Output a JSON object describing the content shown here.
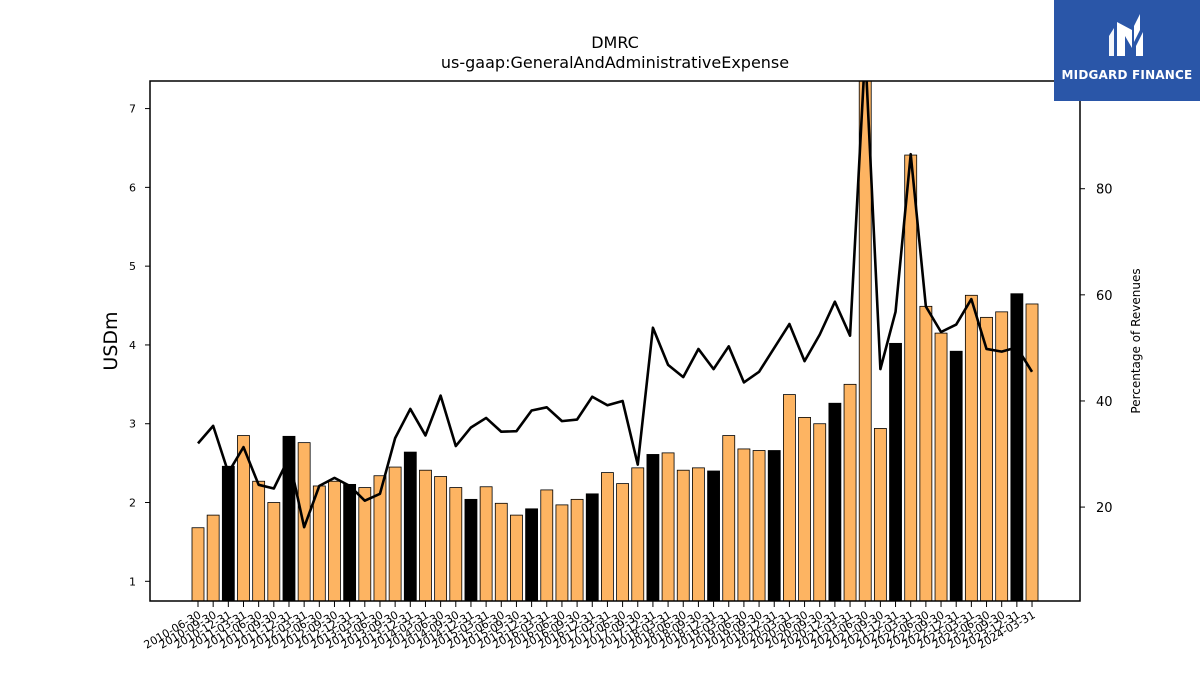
{
  "brand": {
    "name": "MIDGARD FINANCE",
    "logo_icon": "midgard-m-logo-icon",
    "background": "#2a56a8"
  },
  "chart_data": {
    "type": "bar",
    "title": "DMRC",
    "subtitle": "us-gaap:GeneralAndAdministrativeExpense",
    "ylabel": "USDm",
    "y2label": "Percentage of Revenues",
    "ylim": [
      0.75,
      7.35
    ],
    "y2lim": [
      2.3,
      100.3
    ],
    "yticks": [
      1,
      2,
      3,
      4,
      5,
      6,
      7
    ],
    "y2ticks": [
      20,
      40,
      60,
      80
    ],
    "colors": {
      "bar": "#fdb462",
      "bar_q4": "#000000",
      "line": "#000000"
    },
    "categories": [
      "2010-06-30",
      "2010-09-30",
      "2010-12-31",
      "2011-03-31",
      "2011-06-30",
      "2011-09-30",
      "2011-12-31",
      "2012-03-31",
      "2012-06-30",
      "2012-09-30",
      "2012-12-31",
      "2013-03-31",
      "2013-06-30",
      "2013-09-30",
      "2013-12-31",
      "2014-03-31",
      "2014-06-30",
      "2014-09-30",
      "2014-12-31",
      "2015-03-31",
      "2015-06-30",
      "2015-09-30",
      "2015-12-31",
      "2016-03-31",
      "2016-06-30",
      "2016-09-30",
      "2016-12-31",
      "2017-03-31",
      "2017-06-30",
      "2017-09-30",
      "2017-12-31",
      "2018-03-31",
      "2018-06-30",
      "2018-09-30",
      "2018-12-31",
      "2019-03-31",
      "2019-06-30",
      "2019-09-30",
      "2019-12-31",
      "2020-03-31",
      "2020-06-30",
      "2020-09-30",
      "2020-12-31",
      "2021-03-31",
      "2021-06-30",
      "2021-09-30",
      "2021-12-31",
      "2022-03-31",
      "2022-06-30",
      "2022-09-30",
      "2022-12-31",
      "2023-03-31",
      "2023-06-30",
      "2023-09-30",
      "2023-12-31",
      "2024-03-31"
    ],
    "xtick_labels": [
      "2010-06-30",
      "2010-09-30",
      "2010-12-31",
      "2011-03-31",
      "2011-06-30",
      "2011-09-30",
      "2011-12-31",
      "2012-03-31",
      "2012-06-30",
      "2012-09-30",
      "2012-12-31",
      "2013-03-31",
      "2013-06-30",
      "2013-09-30",
      "2013-12-31",
      "2014-03-31",
      "2014-06-30",
      "2014-09-30",
      "2014-12-31",
      "2015-03-31",
      "2015-06-30",
      "2015-09-30",
      "2015-12-31",
      "2016-03-31",
      "2016-06-30",
      "2016-09-30",
      "2016-12-31",
      "2017-03-31",
      "2017-06-30",
      "2017-09-30",
      "2017-12-31",
      "2018-03-31",
      "2018-06-30",
      "2018-09-30",
      "2018-12-31",
      "2019-03-31",
      "2019-06-30",
      "2019-09-30",
      "2019-12-31",
      "2020-03-31",
      "2020-06-30",
      "2020-09-30",
      "2020-12-31",
      "2021-03-31",
      "2021-06-30",
      "2021-09-30",
      "2021-12-31",
      "2022-03-31",
      "2022-06-30",
      "2022-09-30",
      "2022-12-31",
      "2023-03-31",
      "2023-06-30",
      "2023-09-30",
      "2023-12-31",
      "2024-03-31"
    ],
    "series": [
      {
        "type": "bar",
        "values": [
          1.68,
          1.84,
          2.46,
          2.85,
          2.27,
          2.0,
          2.84,
          2.76,
          2.21,
          2.27,
          2.23,
          2.19,
          2.34,
          2.45,
          2.64,
          2.41,
          2.33,
          2.19,
          2.04,
          2.2,
          1.99,
          1.84,
          1.92,
          2.16,
          1.97,
          2.04,
          2.11,
          2.38,
          2.24,
          2.44,
          2.61,
          2.63,
          2.41,
          2.44,
          2.4,
          2.85,
          2.68,
          2.66,
          2.66,
          3.37,
          3.08,
          3.0,
          3.26,
          3.5,
          7.6,
          2.94,
          4.02,
          6.41,
          4.49,
          4.15,
          3.92,
          4.63,
          4.35,
          4.42,
          4.65,
          4.52
        ],
        "highlight": [
          false,
          false,
          true,
          false,
          false,
          false,
          true,
          false,
          false,
          false,
          true,
          false,
          false,
          false,
          true,
          false,
          false,
          false,
          true,
          false,
          false,
          false,
          true,
          false,
          false,
          false,
          true,
          false,
          false,
          false,
          true,
          false,
          false,
          false,
          true,
          false,
          false,
          false,
          true,
          false,
          false,
          false,
          true,
          false,
          false,
          false,
          true,
          false,
          false,
          false,
          true,
          false,
          false,
          false,
          true,
          false
        ]
      },
      {
        "type": "line",
        "values": [
          32.0,
          35.3,
          26.5,
          31.3,
          24.2,
          23.5,
          29.3,
          16.2,
          24.0,
          25.5,
          24.0,
          21.2,
          22.5,
          33.0,
          38.5,
          33.5,
          41.0,
          31.5,
          35.0,
          36.8,
          34.2,
          34.3,
          38.2,
          38.8,
          36.2,
          36.5,
          40.8,
          39.2,
          40.0,
          28.0,
          53.8,
          46.8,
          44.5,
          49.8,
          46.0,
          50.3,
          43.5,
          45.5,
          50.0,
          54.5,
          47.5,
          52.5,
          58.7,
          52.3,
          106.0,
          46.0,
          56.8,
          86.5,
          57.8,
          53.0,
          54.4,
          59.2,
          49.8,
          49.3,
          50.1,
          45.5
        ]
      }
    ]
  }
}
